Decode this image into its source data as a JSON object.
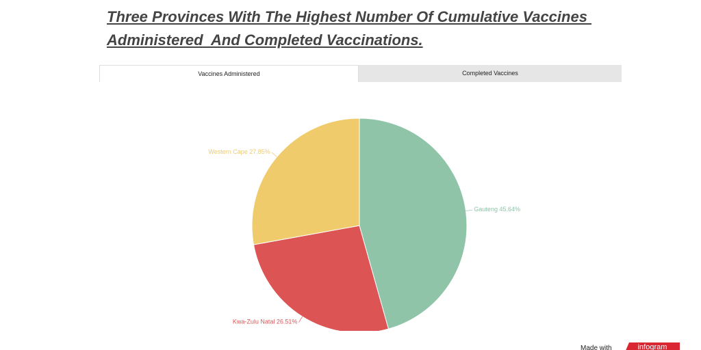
{
  "chart_data": {
    "type": "pie",
    "title": [
      "Three Provinces With The Highest Number Of Cumulative Vaccines ",
      "Administered  And Completed Vaccinations."
    ],
    "tabs": [
      "Vaccines Administered",
      "Completed Vaccines"
    ],
    "categories": [
      "Gauteng",
      "Kwa-Zulu Natal",
      "Western Cape"
    ],
    "values": [
      45.64,
      26.51,
      27.85
    ],
    "value_labels": [
      "45.64%",
      "26.51%",
      "27.85%"
    ],
    "colors": [
      "#8fc4a8",
      "#dd5455",
      "#efcb6b"
    ],
    "footer": {
      "made_with": "Made with",
      "brand": "infogram"
    }
  }
}
